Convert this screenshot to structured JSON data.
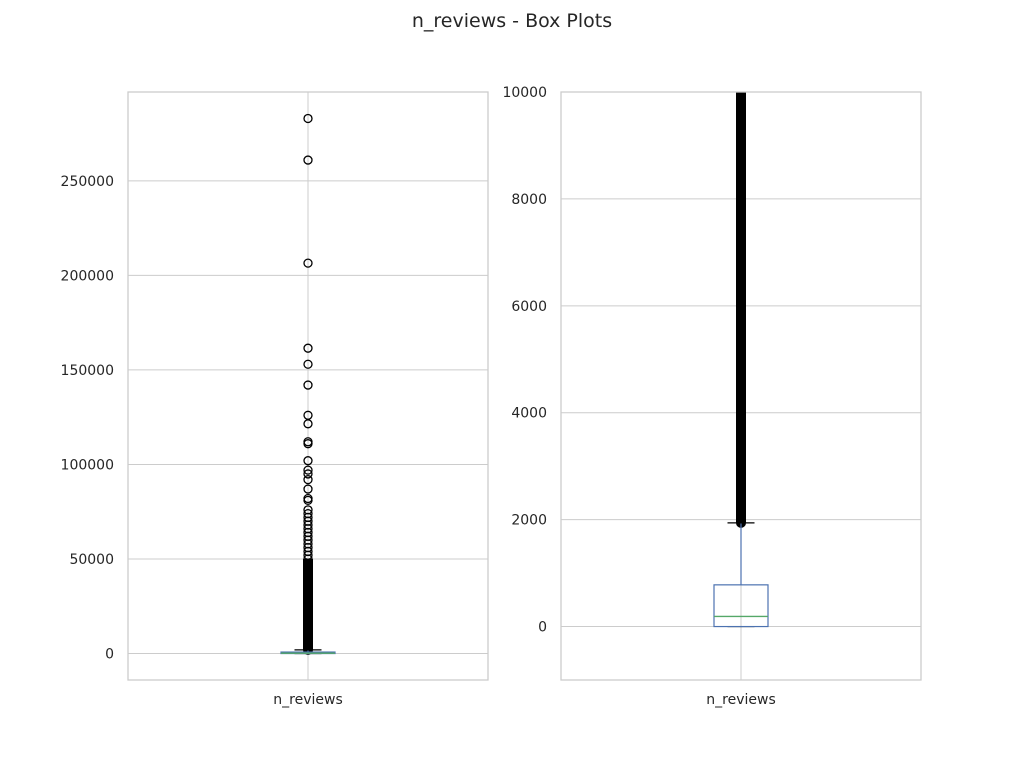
{
  "figure": {
    "title": "n_reviews - Box Plots"
  },
  "chart_data": [
    {
      "type": "box",
      "category_label": "n_reviews",
      "ylim": [
        -14000,
        297000
      ],
      "yticks": [
        0,
        50000,
        100000,
        150000,
        200000,
        250000
      ],
      "ytick_labels": [
        "0",
        "50000",
        "100000",
        "150000",
        "200000",
        "250000"
      ],
      "grid": true,
      "box": {
        "q1": 0,
        "median": 190,
        "q3": 780,
        "whisker_low": 0,
        "whisker_high": 1940
      },
      "outliers": [
        283000,
        261000,
        206500,
        161500,
        153000,
        142000,
        126000,
        121500,
        112000,
        111000,
        102000,
        97000,
        95000,
        92000,
        87000,
        82000,
        81000,
        76000,
        74000,
        72000,
        70000,
        68000,
        66000,
        64000,
        62000,
        60000,
        58000,
        56000,
        54000,
        52000,
        50000
      ],
      "outlier_dense_range": [
        1940,
        50000
      ]
    },
    {
      "type": "box",
      "category_label": "n_reviews",
      "ylim": [
        -1000,
        10000
      ],
      "yticks": [
        0,
        2000,
        4000,
        6000,
        8000,
        10000
      ],
      "ytick_labels": [
        "0",
        "2000",
        "4000",
        "6000",
        "8000",
        "10000"
      ],
      "grid": true,
      "box": {
        "q1": 0,
        "median": 190,
        "q3": 780,
        "whisker_low": 0,
        "whisker_high": 1940
      },
      "outliers": [],
      "outlier_dense_range": [
        1940,
        10000
      ]
    }
  ],
  "colors": {
    "grid": "#cccccc",
    "frame": "#cccccc",
    "box": "#4c72b0",
    "median": "#55a868",
    "whisker_cap": "#000000",
    "outlier": "#000000"
  }
}
